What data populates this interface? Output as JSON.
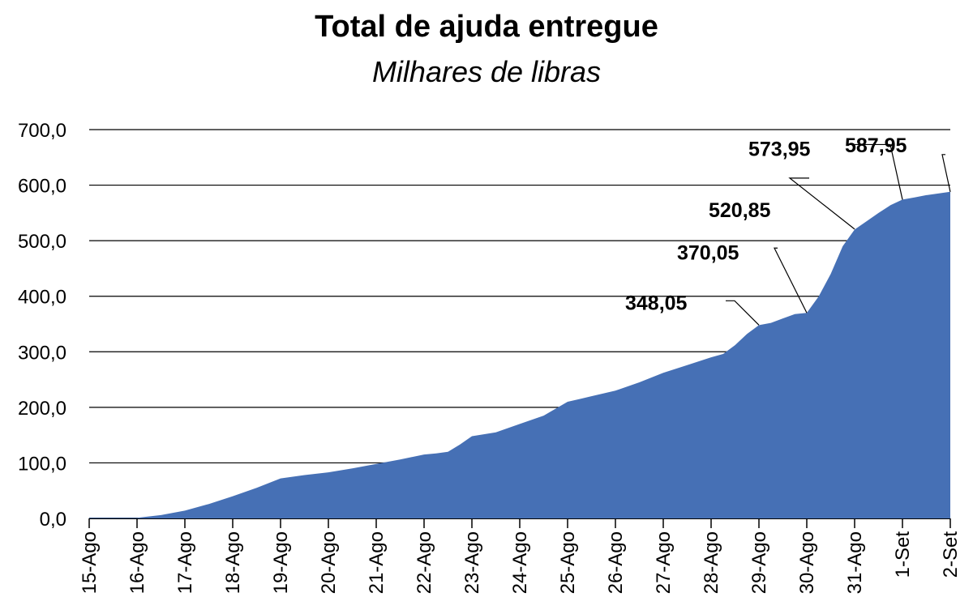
{
  "chart_data": {
    "type": "area",
    "title": "Total de ajuda entregue",
    "subtitle": "Milhares de libras",
    "xlabel": "",
    "ylabel": "",
    "ylim": [
      0,
      700
    ],
    "grid": true,
    "fill_color": "#4670b5",
    "categories": [
      "15-Ago",
      "16-Ago",
      "17-Ago",
      "18-Ago",
      "19-Ago",
      "20-Ago",
      "21-Ago",
      "22-Ago",
      "23-Ago",
      "24-Ago",
      "25-Ago",
      "26-Ago",
      "27-Ago",
      "28-Ago",
      "29-Ago",
      "30-Ago",
      "31-Ago",
      "1-Set",
      "2-Set"
    ],
    "ytick_labels": [
      "0,0",
      "100,0",
      "200,0",
      "300,0",
      "400,0",
      "500,0",
      "600,0",
      "700,0"
    ],
    "ytick_values": [
      0,
      100,
      200,
      300,
      400,
      500,
      600,
      700
    ],
    "series": [
      {
        "x": [
          0,
          1,
          1.5,
          2,
          2.5,
          3,
          3.5,
          4,
          4.5,
          5,
          5.5,
          6,
          6.5,
          7,
          7.25,
          7.5,
          7.75,
          8,
          8.5,
          9,
          9.5,
          10,
          10.25,
          10.5,
          11,
          11.5,
          12,
          12.5,
          13,
          13.25,
          13.5,
          13.75,
          14,
          14.25,
          14.5,
          14.75,
          15,
          15.25,
          15.5,
          15.75,
          16,
          16.25,
          16.5,
          16.75,
          17,
          17.25,
          17.5,
          18
        ],
        "values": [
          1,
          1,
          6,
          14,
          26,
          40,
          55,
          72,
          78,
          83,
          90,
          98,
          106,
          115,
          117,
          120,
          133,
          148,
          155,
          170,
          185,
          210,
          215,
          220,
          230,
          245,
          262,
          276,
          290,
          296,
          312,
          332,
          348,
          352,
          360,
          368,
          370,
          400,
          440,
          490,
          520,
          535,
          550,
          564,
          573.95,
          578,
          582,
          587.95
        ]
      }
    ],
    "annotations": [
      {
        "label": "348,05",
        "x": 14,
        "y": 348.05
      },
      {
        "label": "370,05",
        "x": 15,
        "y": 370.05
      },
      {
        "label": "520,85",
        "x": 16,
        "y": 520.85
      },
      {
        "label": "573,95",
        "x": 17,
        "y": 573.95
      },
      {
        "label": "587,95",
        "x": 18,
        "y": 587.95
      }
    ]
  }
}
